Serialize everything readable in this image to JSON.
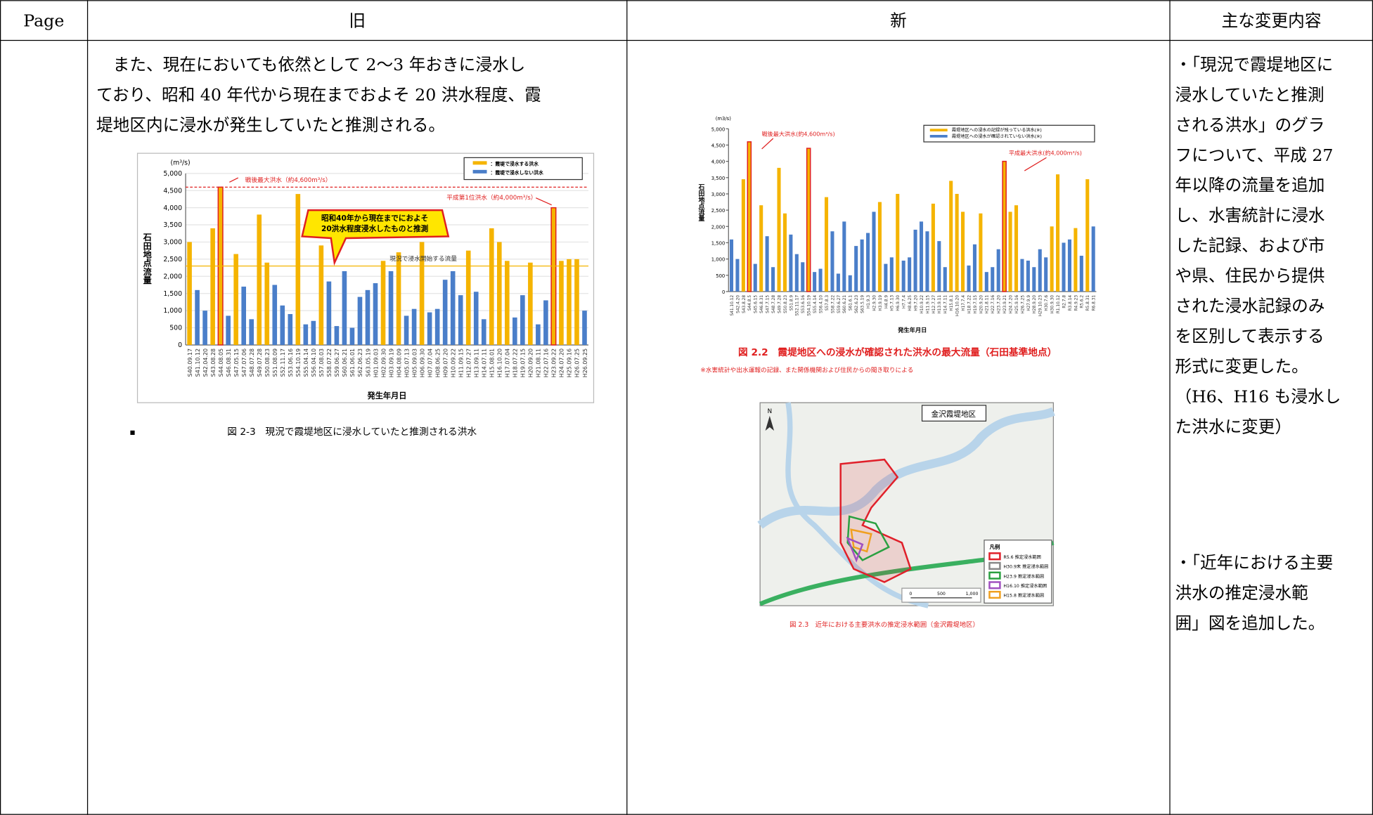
{
  "header": {
    "page": "Page",
    "old": "旧",
    "new": "新",
    "changes": "主な変更内容"
  },
  "old_text": [
    "　また、現在においても依然として 2〜3 年おきに浸水し",
    "ており、昭和 40 年代から現在までおよそ 20 洪水程度、霞",
    "堤地区内に浸水が発生していたと推測される。"
  ],
  "old_caption": "図 2-3　現況で霞堤地区に浸水していたと推測される洪水",
  "changes_text": [
    "・「現況で霞堤地区に",
    "浸水していたと推測",
    "される洪水」のグラ",
    "フについて、平成 27",
    "年以降の流量を追加",
    "し、水害統計に浸水",
    "した記録、および市",
    "や県、住民から提供",
    "された浸水記録のみ",
    "を区別して表示する",
    "形式に変更した。",
    "（H6、H16 も浸水し",
    "た洪水に変更）",
    "・「近年における主要",
    "洪水の推定浸水範",
    "囲」図を追加した。"
  ],
  "new_caption": "図 2.2　霞堤地区への浸水が確認された洪水の最大流量（石田基準地点）",
  "new_note": "※水害統計や出水運報の記録、また関係機関および住民からの聞き取りによる",
  "map": {
    "title": "金沢霞堤地区",
    "north": "N",
    "legend_title": "凡例",
    "legend": [
      {
        "label": "R5.6 推定浸水範囲",
        "color": "#e0202a"
      },
      {
        "label": "H30.9末 推定浸水範囲",
        "color": "#888888"
      },
      {
        "label": "H23.9 推定浸水範囲",
        "color": "#2aa040"
      },
      {
        "label": "H16.10 推定浸水範囲",
        "color": "#a050c0"
      },
      {
        "label": "H15.8 推定浸水範囲",
        "color": "#f0a020"
      }
    ],
    "scale": [
      "0",
      "500",
      "1,000"
    ],
    "caption": "図 2.3　近年における主要洪水の推定浸水範囲（金沢霞堤地区）"
  },
  "chart_data": [
    {
      "type": "bar",
      "unit": "(m³/s)",
      "ylabel": "石田地点流量",
      "xlabel": "発生年月日",
      "categories": [
        "S40.09.17",
        "S41.10.12",
        "S42.04.20",
        "S43.08.28",
        "S44.08.05",
        "S46.08.31",
        "S47.05.15",
        "S47.07.06",
        "S48.07.28",
        "S49.07.28",
        "S50.08.23",
        "S51.08.09",
        "S52.11.17",
        "S53.06.16",
        "S54.10.19",
        "S55.04.14",
        "S56.04.10",
        "S57.08.03",
        "S58.07.22",
        "S59.06.27",
        "S60.06.21",
        "S61.06.01",
        "S62.06.23",
        "S63.05.19",
        "H01.09.03",
        "H02.09.30",
        "H03.09.19",
        "H04.08.09",
        "H05.07.13",
        "H05.09.03",
        "H06.09.30",
        "H07.07.04",
        "H08.06.25",
        "H09.07.20",
        "H10.09.22",
        "H11.09.15",
        "H12.07.27",
        "H13.09.11",
        "H14.07.11",
        "H15.08.01",
        "H16.10.20",
        "H17.07.04",
        "H18.07.22",
        "H19.07.15",
        "H20.09.20",
        "H21.08.11",
        "H22.07.16",
        "H23.09.22",
        "H24.07.20",
        "H25.09.16",
        "H26.07.25",
        "H26.09.25"
      ],
      "values": [
        3000,
        1600,
        1000,
        3400,
        4600,
        850,
        2650,
        1700,
        750,
        3800,
        2400,
        1750,
        1150,
        900,
        4400,
        600,
        700,
        2900,
        1850,
        550,
        2150,
        500,
        1400,
        1600,
        1800,
        2450,
        2150,
        2700,
        850,
        1050,
        3000,
        950,
        1050,
        1900,
        2150,
        1450,
        2750,
        1550,
        750,
        3400,
        3000,
        2450,
        800,
        1450,
        2400,
        600,
        1300,
        4000,
        2450,
        2500,
        2500,
        1000
      ],
      "colors": [
        "#f5b400",
        "#4a7ec9",
        "#4a7ec9",
        "#f5b400",
        "#f5b400",
        "#4a7ec9",
        "#f5b400",
        "#4a7ec9",
        "#4a7ec9",
        "#f5b400",
        "#f5b400",
        "#4a7ec9",
        "#4a7ec9",
        "#4a7ec9",
        "#f5b400",
        "#4a7ec9",
        "#4a7ec9",
        "#f5b400",
        "#4a7ec9",
        "#4a7ec9",
        "#4a7ec9",
        "#4a7ec9",
        "#4a7ec9",
        "#4a7ec9",
        "#4a7ec9",
        "#f5b400",
        "#4a7ec9",
        "#f5b400",
        "#4a7ec9",
        "#4a7ec9",
        "#f5b400",
        "#4a7ec9",
        "#4a7ec9",
        "#4a7ec9",
        "#4a7ec9",
        "#4a7ec9",
        "#f5b400",
        "#4a7ec9",
        "#4a7ec9",
        "#f5b400",
        "#f5b400",
        "#f5b400",
        "#4a7ec9",
        "#4a7ec9",
        "#f5b400",
        "#4a7ec9",
        "#4a7ec9",
        "#f5b400",
        "#f5b400",
        "#f5b400",
        "#f5b400",
        "#4a7ec9"
      ],
      "highlighted": [
        4,
        47
      ],
      "legend": [
        {
          "label": "：霞堤で浸水する洪水",
          "color": "#f5b400"
        },
        {
          "label": "：霞堤で浸水しない洪水",
          "color": "#4a7ec9"
        }
      ],
      "ylim": [
        0,
        5000
      ],
      "yticks": [
        0,
        500,
        {
          "value": 1000,
          "label": "1,000"
        },
        {
          "value": 1500,
          "label": "1,500"
        },
        {
          "value": 2000,
          "label": "2,000"
        },
        {
          "value": 2500,
          "label": "2,500"
        },
        {
          "value": 3000,
          "label": "3,000"
        },
        {
          "value": 3500,
          "label": "3,500"
        },
        {
          "value": 4000,
          "label": "4,000"
        },
        {
          "value": 4500,
          "label": "4,500"
        },
        {
          "value": 5000,
          "label": "5,000"
        }
      ],
      "grid": true,
      "reference_lines": [
        {
          "value": 4600,
          "label": "戦後最大洪水（約4,600m³/s）",
          "color": "#e02020"
        },
        {
          "value": 2300,
          "label": "現況で浸水開始する流量",
          "color": "#f5b400"
        }
      ],
      "annotations": [
        {
          "label": "平成第1位洪水（約4,000m³/s）"
        }
      ],
      "callout": [
        "昭和40年から現在までにおよそ",
        "20洪水程度浸水したものと推測"
      ]
    },
    {
      "type": "bar",
      "unit": "(m3/s)",
      "ylabel": "石田地点流量",
      "xlabel": "発生年月日",
      "categories": [
        "S41.10.12",
        "S42.4.20",
        "S43.8.28",
        "S44.8.5",
        "S45.6.15",
        "S46.8.31",
        "S47.7.15",
        "S48.7.28",
        "S49.7.28",
        "S50.8.23",
        "S51.8.9",
        "S52.11.17",
        "S53.6.16",
        "S54.10.19",
        "S55.4.14",
        "S56.4.10",
        "S57.8.3",
        "S58.7.22",
        "S59.6.27",
        "S60.6.21",
        "S61.6.1",
        "S62.6.23",
        "S63.5.19",
        "H1.9.3",
        "H2.9.30",
        "H3.9.19",
        "H4.8.9",
        "H5.7.13",
        "H6.9.30",
        "H7.7.4",
        "H8.6.25",
        "H9.7.20",
        "H10.9.22",
        "H11.9.15",
        "H12.7.27",
        "H13.9.11",
        "H14.7.11",
        "H15.8.1",
        "H16.10.20",
        "H17.7.4",
        "H18.7.22",
        "H19.7.15",
        "H20.9.20",
        "H21.8.11",
        "H22.7.16",
        "H23.7.20",
        "H23.9.21",
        "H24.7.20",
        "H25.9.16",
        "H26.7.25",
        "H27.9.9",
        "H28.9.20",
        "H29.10.23",
        "H30.7.6",
        "H30.9.30",
        "R1.10.12",
        "R2.7.8",
        "R3.8.14",
        "R4.9.23",
        "R5.6.2",
        "R5.8.31",
        "R6.8.31"
      ],
      "values": [
        1600,
        1000,
        3450,
        4600,
        850,
        2650,
        1700,
        750,
        3800,
        2400,
        1750,
        1150,
        900,
        4400,
        600,
        700,
        2900,
        1850,
        550,
        2150,
        500,
        1400,
        1600,
        1800,
        2450,
        2750,
        850,
        1050,
        3000,
        950,
        1050,
        1900,
        2150,
        1850,
        2700,
        1550,
        750,
        3400,
        3000,
        2450,
        800,
        1450,
        2400,
        600,
        750,
        1300,
        4000,
        2450,
        2650,
        1000,
        950,
        750,
        1300,
        1050,
        2000,
        3600,
        1500,
        1600,
        1950,
        1100,
        3450,
        2000
      ],
      "colors": [
        "#4a7ec9",
        "#4a7ec9",
        "#f5b400",
        "#f5b400",
        "#4a7ec9",
        "#f5b400",
        "#4a7ec9",
        "#4a7ec9",
        "#f5b400",
        "#f5b400",
        "#4a7ec9",
        "#4a7ec9",
        "#4a7ec9",
        "#f5b400",
        "#4a7ec9",
        "#4a7ec9",
        "#f5b400",
        "#4a7ec9",
        "#4a7ec9",
        "#4a7ec9",
        "#4a7ec9",
        "#4a7ec9",
        "#4a7ec9",
        "#4a7ec9",
        "#4a7ec9",
        "#f5b400",
        "#4a7ec9",
        "#4a7ec9",
        "#f5b400",
        "#4a7ec9",
        "#4a7ec9",
        "#4a7ec9",
        "#4a7ec9",
        "#4a7ec9",
        "#f5b400",
        "#4a7ec9",
        "#4a7ec9",
        "#f5b400",
        "#f5b400",
        "#f5b400",
        "#4a7ec9",
        "#4a7ec9",
        "#f5b400",
        "#4a7ec9",
        "#4a7ec9",
        "#4a7ec9",
        "#f5b400",
        "#f5b400",
        "#f5b400",
        "#4a7ec9",
        "#4a7ec9",
        "#4a7ec9",
        "#4a7ec9",
        "#4a7ec9",
        "#f5b400",
        "#f5b400",
        "#4a7ec9",
        "#4a7ec9",
        "#f5b400",
        "#4a7ec9",
        "#f5b400",
        "#4a7ec9"
      ],
      "highlighted": [
        3,
        13,
        46
      ],
      "legend": [
        {
          "label": "霞堤地区への浸水の記録が残っている洪水(※)",
          "color": "#f5b400"
        },
        {
          "label": "霞堤地区への浸水が確認されていない洪水(※)",
          "color": "#4a7ec9"
        }
      ],
      "ylim": [
        0,
        5000
      ],
      "yticks": [
        0,
        500,
        {
          "value": 1000,
          "label": "1,000"
        },
        {
          "value": 1500,
          "label": "1,500"
        },
        {
          "value": 2000,
          "label": "2,000"
        },
        {
          "value": 2500,
          "label": "2,500"
        },
        {
          "value": 3000,
          "label": "3,000"
        },
        {
          "value": 3500,
          "label": "3,500"
        },
        {
          "value": 4000,
          "label": "4,000"
        },
        {
          "value": 4500,
          "label": "4,500"
        },
        {
          "value": 5000,
          "label": "5,000"
        }
      ],
      "grid": false,
      "annotations": [
        {
          "label": "戦後最大洪水(約4,600m³/s)"
        },
        {
          "label": "平成最大洪水(約4,000m³/s)"
        }
      ]
    }
  ]
}
